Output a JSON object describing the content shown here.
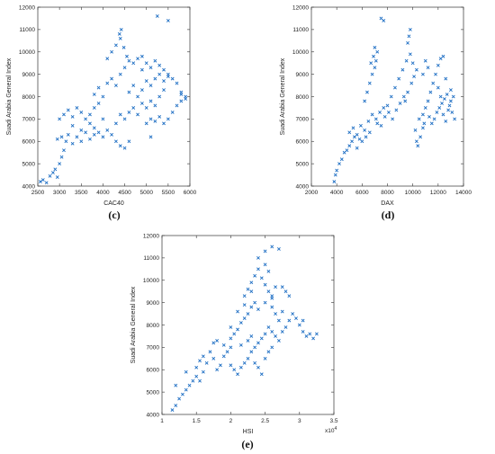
{
  "chart_data": [
    {
      "type": "scatter",
      "panel_label": "(c)",
      "xlabel": "CAC40",
      "ylabel": "Suadi Arabia General Index",
      "xlim": [
        2500,
        6000
      ],
      "ylim": [
        4000,
        12000
      ],
      "xticks": [
        2500,
        3000,
        3500,
        4000,
        4500,
        5000,
        5500,
        6000
      ],
      "yticks": [
        4000,
        5000,
        6000,
        7000,
        8000,
        9000,
        10000,
        11000,
        12000
      ],
      "marker": "x",
      "color": "#1f6fc4",
      "points": [
        [
          2560,
          4200
        ],
        [
          2620,
          4280
        ],
        [
          2700,
          4150
        ],
        [
          2780,
          4450
        ],
        [
          2850,
          4600
        ],
        [
          2900,
          4750
        ],
        [
          2950,
          4400
        ],
        [
          3000,
          5000
        ],
        [
          3050,
          5300
        ],
        [
          3100,
          5600
        ],
        [
          2950,
          6100
        ],
        [
          3050,
          6200
        ],
        [
          3150,
          6000
        ],
        [
          3200,
          6300
        ],
        [
          3300,
          5900
        ],
        [
          3400,
          6200
        ],
        [
          3500,
          6500
        ],
        [
          3600,
          6400
        ],
        [
          3700,
          6800
        ],
        [
          3800,
          6600
        ],
        [
          3000,
          7000
        ],
        [
          3100,
          7200
        ],
        [
          3200,
          7400
        ],
        [
          3300,
          7100
        ],
        [
          3400,
          7500
        ],
        [
          3500,
          7300
        ],
        [
          3600,
          7000
        ],
        [
          3700,
          7200
        ],
        [
          3800,
          7500
        ],
        [
          3900,
          7700
        ],
        [
          3700,
          6100
        ],
        [
          3800,
          6300
        ],
        [
          3900,
          6400
        ],
        [
          4000,
          6200
        ],
        [
          4100,
          6500
        ],
        [
          4200,
          6300
        ],
        [
          4300,
          6000
        ],
        [
          4400,
          5800
        ],
        [
          4500,
          5700
        ],
        [
          4600,
          6000
        ],
        [
          3800,
          8100
        ],
        [
          3900,
          8400
        ],
        [
          4000,
          8000
        ],
        [
          4100,
          8600
        ],
        [
          4200,
          8800
        ],
        [
          4300,
          8500
        ],
        [
          4400,
          9000
        ],
        [
          4500,
          9300
        ],
        [
          4600,
          9600
        ],
        [
          4700,
          9500
        ],
        [
          4100,
          9700
        ],
        [
          4200,
          10000
        ],
        [
          4300,
          10300
        ],
        [
          4400,
          10600
        ],
        [
          4420,
          11000
        ],
        [
          4380,
          10800
        ],
        [
          4480,
          10200
        ],
        [
          4550,
          9800
        ],
        [
          4800,
          9700
        ],
        [
          4900,
          9800
        ],
        [
          4500,
          7000
        ],
        [
          4600,
          7300
        ],
        [
          4700,
          7500
        ],
        [
          4800,
          7200
        ],
        [
          4900,
          7700
        ],
        [
          5000,
          7500
        ],
        [
          5100,
          7800
        ],
        [
          5200,
          7600
        ],
        [
          5300,
          8000
        ],
        [
          5400,
          8300
        ],
        [
          4600,
          8200
        ],
        [
          4700,
          8500
        ],
        [
          4800,
          8000
        ],
        [
          4900,
          8300
        ],
        [
          5000,
          8700
        ],
        [
          5100,
          8500
        ],
        [
          5200,
          8800
        ],
        [
          5300,
          9000
        ],
        [
          5400,
          8700
        ],
        [
          5500,
          8900
        ],
        [
          4900,
          9200
        ],
        [
          5000,
          9500
        ],
        [
          5100,
          9300
        ],
        [
          5200,
          9600
        ],
        [
          5300,
          9400
        ],
        [
          5400,
          9200
        ],
        [
          5500,
          9000
        ],
        [
          5600,
          8800
        ],
        [
          5700,
          8600
        ],
        [
          5800,
          8200
        ],
        [
          5000,
          6800
        ],
        [
          5100,
          7000
        ],
        [
          5200,
          6900
        ],
        [
          5300,
          7100
        ],
        [
          5400,
          6800
        ],
        [
          5500,
          7000
        ],
        [
          5600,
          7300
        ],
        [
          5700,
          7600
        ],
        [
          5800,
          7800
        ],
        [
          5900,
          8000
        ],
        [
          5250,
          11600
        ],
        [
          5500,
          11400
        ],
        [
          4300,
          6800
        ],
        [
          4400,
          7200
        ],
        [
          4000,
          7000
        ],
        [
          3500,
          6000
        ],
        [
          3300,
          6700
        ],
        [
          5100,
          6200
        ],
        [
          5900,
          7900
        ],
        [
          5800,
          8100
        ]
      ]
    },
    {
      "type": "scatter",
      "panel_label": "(d)",
      "xlabel": "DAX",
      "ylabel": "Suadi Arabia General Index",
      "xlim": [
        2000,
        14000
      ],
      "ylim": [
        4000,
        12000
      ],
      "xticks": [
        2000,
        4000,
        6000,
        8000,
        10000,
        12000,
        14000
      ],
      "yticks": [
        4000,
        5000,
        6000,
        7000,
        8000,
        9000,
        10000,
        11000,
        12000
      ],
      "marker": "x",
      "color": "#1f6fc4",
      "points": [
        [
          3800,
          4200
        ],
        [
          3900,
          4500
        ],
        [
          4000,
          4700
        ],
        [
          4200,
          5000
        ],
        [
          4400,
          5200
        ],
        [
          4600,
          5500
        ],
        [
          4800,
          5600
        ],
        [
          5000,
          5800
        ],
        [
          5200,
          6000
        ],
        [
          5400,
          6200
        ],
        [
          5000,
          6400
        ],
        [
          5300,
          6600
        ],
        [
          5600,
          6300
        ],
        [
          5900,
          6700
        ],
        [
          6200,
          6500
        ],
        [
          6500,
          6900
        ],
        [
          6800,
          7200
        ],
        [
          7100,
          7000
        ],
        [
          7400,
          7300
        ],
        [
          7700,
          7500
        ],
        [
          6200,
          7800
        ],
        [
          6400,
          8200
        ],
        [
          6600,
          8600
        ],
        [
          6800,
          9000
        ],
        [
          7000,
          9300
        ],
        [
          7100,
          9600
        ],
        [
          6900,
          9800
        ],
        [
          6700,
          9500
        ],
        [
          7200,
          10000
        ],
        [
          7000,
          10200
        ],
        [
          7500,
          11500
        ],
        [
          7700,
          11400
        ],
        [
          8000,
          7600
        ],
        [
          8300,
          8000
        ],
        [
          8600,
          8400
        ],
        [
          8900,
          8800
        ],
        [
          9200,
          9200
        ],
        [
          9500,
          9600
        ],
        [
          9800,
          9900
        ],
        [
          9700,
          10700
        ],
        [
          9800,
          11000
        ],
        [
          9600,
          10400
        ],
        [
          10000,
          9500
        ],
        [
          9400,
          7800
        ],
        [
          9600,
          8200
        ],
        [
          10200,
          6500
        ],
        [
          10300,
          6000
        ],
        [
          10400,
          5800
        ],
        [
          10600,
          6200
        ],
        [
          10800,
          6600
        ],
        [
          10500,
          7000
        ],
        [
          10800,
          7200
        ],
        [
          11000,
          7500
        ],
        [
          11200,
          7800
        ],
        [
          11400,
          8200
        ],
        [
          11600,
          8600
        ],
        [
          11800,
          9000
        ],
        [
          12000,
          9400
        ],
        [
          12200,
          9700
        ],
        [
          12400,
          9800
        ],
        [
          11500,
          6800
        ],
        [
          11700,
          7000
        ],
        [
          11900,
          7300
        ],
        [
          12100,
          7500
        ],
        [
          12300,
          7700
        ],
        [
          12500,
          7900
        ],
        [
          12700,
          8100
        ],
        [
          12900,
          7600
        ],
        [
          13100,
          7300
        ],
        [
          13300,
          7000
        ],
        [
          12000,
          8400
        ],
        [
          12200,
          8000
        ],
        [
          12400,
          7200
        ],
        [
          12600,
          6900
        ],
        [
          12800,
          7400
        ],
        [
          13000,
          7800
        ],
        [
          13200,
          8000
        ],
        [
          11200,
          9300
        ],
        [
          11000,
          9600
        ],
        [
          10800,
          9000
        ],
        [
          5600,
          5700
        ],
        [
          5800,
          6100
        ],
        [
          6000,
          6000
        ],
        [
          6300,
          6200
        ],
        [
          6600,
          6400
        ],
        [
          7200,
          6800
        ],
        [
          7500,
          6700
        ],
        [
          7800,
          7100
        ],
        [
          8100,
          7300
        ],
        [
          8400,
          7000
        ],
        [
          8700,
          7400
        ],
        [
          9000,
          7700
        ],
        [
          9300,
          8000
        ],
        [
          9900,
          8600
        ],
        [
          10100,
          8900
        ],
        [
          10300,
          9200
        ],
        [
          10900,
          6800
        ],
        [
          11300,
          7100
        ],
        [
          12600,
          8800
        ],
        [
          13000,
          8300
        ]
      ]
    },
    {
      "type": "scatter",
      "panel_label": "(e)",
      "xlabel": "HSI",
      "ylabel": "Suadi Arabia General Index",
      "x_multiplier": "x10^4",
      "xlim": [
        1,
        3.5
      ],
      "ylim": [
        4000,
        12000
      ],
      "xticks": [
        1,
        1.5,
        2,
        2.5,
        3,
        3.5
      ],
      "yticks": [
        4000,
        5000,
        6000,
        7000,
        8000,
        9000,
        10000,
        11000,
        12000
      ],
      "marker": "x",
      "color": "#1f6fc4",
      "points": [
        [
          1.15,
          4200
        ],
        [
          1.2,
          4400
        ],
        [
          1.25,
          4700
        ],
        [
          1.3,
          4900
        ],
        [
          1.35,
          5100
        ],
        [
          1.4,
          5300
        ],
        [
          1.45,
          5500
        ],
        [
          1.5,
          5700
        ],
        [
          1.55,
          5500
        ],
        [
          1.6,
          5900
        ],
        [
          1.2,
          5300
        ],
        [
          1.35,
          5900
        ],
        [
          1.5,
          6100
        ],
        [
          1.65,
          6300
        ],
        [
          1.75,
          6500
        ],
        [
          1.8,
          6000
        ],
        [
          1.85,
          6200
        ],
        [
          1.9,
          6600
        ],
        [
          1.95,
          6800
        ],
        [
          2.0,
          7000
        ],
        [
          1.8,
          7300
        ],
        [
          1.9,
          7100
        ],
        [
          2.0,
          7400
        ],
        [
          2.05,
          7600
        ],
        [
          2.1,
          7800
        ],
        [
          2.15,
          8100
        ],
        [
          2.2,
          8300
        ],
        [
          2.25,
          8500
        ],
        [
          2.3,
          8800
        ],
        [
          2.35,
          9000
        ],
        [
          2.0,
          6200
        ],
        [
          2.05,
          6000
        ],
        [
          2.1,
          5800
        ],
        [
          2.15,
          6100
        ],
        [
          2.2,
          6300
        ],
        [
          2.25,
          6500
        ],
        [
          2.3,
          6800
        ],
        [
          2.35,
          7000
        ],
        [
          2.4,
          7200
        ],
        [
          2.45,
          7400
        ],
        [
          2.2,
          9300
        ],
        [
          2.25,
          9600
        ],
        [
          2.3,
          9900
        ],
        [
          2.35,
          10200
        ],
        [
          2.4,
          10500
        ],
        [
          2.45,
          10100
        ],
        [
          2.5,
          9800
        ],
        [
          2.55,
          9500
        ],
        [
          2.6,
          9300
        ],
        [
          2.65,
          9700
        ],
        [
          2.4,
          11000
        ],
        [
          2.5,
          11300
        ],
        [
          2.6,
          11500
        ],
        [
          2.7,
          11400
        ],
        [
          2.5,
          10700
        ],
        [
          2.55,
          10400
        ],
        [
          2.6,
          8800
        ],
        [
          2.65,
          8500
        ],
        [
          2.7,
          8200
        ],
        [
          2.75,
          8600
        ],
        [
          2.5,
          7600
        ],
        [
          2.55,
          7900
        ],
        [
          2.6,
          7700
        ],
        [
          2.65,
          7500
        ],
        [
          2.7,
          7300
        ],
        [
          2.75,
          7700
        ],
        [
          2.8,
          7900
        ],
        [
          2.85,
          8200
        ],
        [
          2.9,
          8500
        ],
        [
          2.95,
          8300
        ],
        [
          2.8,
          9500
        ],
        [
          2.85,
          9300
        ],
        [
          2.75,
          9700
        ],
        [
          3.0,
          8000
        ],
        [
          3.05,
          7700
        ],
        [
          3.1,
          7500
        ],
        [
          3.15,
          7600
        ],
        [
          3.2,
          7400
        ],
        [
          3.25,
          7600
        ],
        [
          3.05,
          8200
        ],
        [
          2.0,
          7900
        ],
        [
          2.1,
          8600
        ],
        [
          2.2,
          8900
        ],
        [
          2.3,
          7500
        ],
        [
          2.35,
          6300
        ],
        [
          2.4,
          6100
        ],
        [
          2.45,
          5800
        ],
        [
          2.5,
          6500
        ],
        [
          2.55,
          6800
        ],
        [
          2.6,
          7000
        ],
        [
          1.7,
          6800
        ],
        [
          1.75,
          7200
        ],
        [
          1.6,
          6600
        ],
        [
          1.55,
          6400
        ],
        [
          2.15,
          7100
        ],
        [
          2.25,
          7300
        ],
        [
          2.3,
          9500
        ],
        [
          2.4,
          8700
        ],
        [
          2.5,
          9000
        ],
        [
          2.6,
          9200
        ]
      ]
    }
  ]
}
